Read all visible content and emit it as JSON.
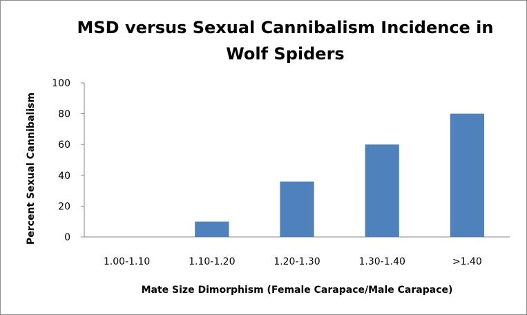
{
  "chart_data": {
    "type": "bar",
    "title_lines": [
      "MSD versus Sexual Cannibalism Incidence in",
      "Wolf Spiders"
    ],
    "xlabel": "Mate Size Dimorphism (Female Carapace/Male Carapace)",
    "ylabel": "Percent Sexual Cannibalism",
    "categories": [
      "1.00-1.10",
      "1.10-1.20",
      "1.20-1.30",
      "1.30-1.40",
      ">1.40"
    ],
    "values": [
      0,
      10,
      36,
      60,
      80
    ],
    "ylim": [
      0,
      100
    ],
    "yticks": [
      0,
      20,
      40,
      60,
      80,
      100
    ],
    "grid": false,
    "legend": "none",
    "bar_color": "#4f81bd",
    "axis_color": "#868686"
  }
}
